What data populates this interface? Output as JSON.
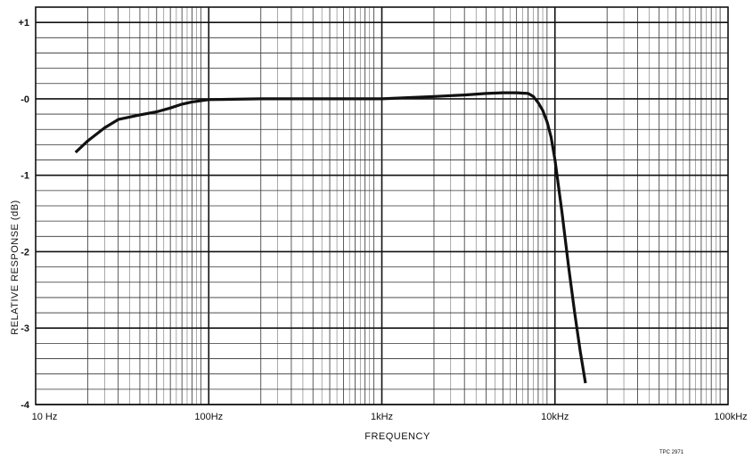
{
  "chart_data": {
    "type": "line",
    "title": "",
    "xlabel": "FREQUENCY",
    "ylabel": "RELATIVE RESPONSE (dB)",
    "xscale": "log",
    "xlim": [
      10,
      100000
    ],
    "ylim": [
      -4,
      1.2
    ],
    "grid": true,
    "x_ticks": [
      {
        "value": 10,
        "label": "10 Hz"
      },
      {
        "value": 100,
        "label": "100Hz"
      },
      {
        "value": 1000,
        "label": "1kHz"
      },
      {
        "value": 10000,
        "label": "10kHz"
      },
      {
        "value": 100000,
        "label": "100kHz"
      }
    ],
    "y_ticks": [
      {
        "value": 1,
        "label": "+1"
      },
      {
        "value": 0,
        "label": "-0"
      },
      {
        "value": -1,
        "label": "-1"
      },
      {
        "value": -2,
        "label": "-2"
      },
      {
        "value": -3,
        "label": "-3"
      },
      {
        "value": -4,
        "label": "-4"
      }
    ],
    "series": [
      {
        "color": "#111111",
        "x": [
          17,
          20,
          25,
          30,
          40,
          50,
          60,
          70,
          80,
          100,
          200,
          500,
          1000,
          2000,
          3000,
          4000,
          5000,
          6000,
          7000,
          7500,
          8000,
          8500,
          9000,
          9500,
          10000,
          11000,
          12000,
          13000,
          14000,
          15000
        ],
        "y": [
          -0.7,
          -0.55,
          -0.38,
          -0.27,
          -0.21,
          -0.17,
          -0.12,
          -0.07,
          -0.04,
          -0.01,
          0.0,
          0.0,
          0.0,
          0.03,
          0.05,
          0.07,
          0.08,
          0.08,
          0.07,
          0.03,
          -0.05,
          -0.15,
          -0.3,
          -0.5,
          -0.8,
          -1.5,
          -2.2,
          -2.8,
          -3.3,
          -3.72
        ]
      }
    ]
  },
  "figure_ref": "TPC 2971"
}
